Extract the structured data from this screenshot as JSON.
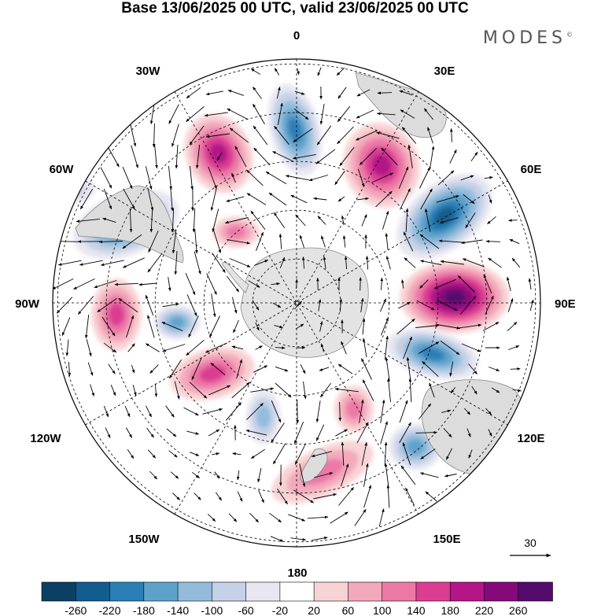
{
  "title": "Base 13/06/2025 00 UTC, valid 23/06/2025 00 UTC",
  "brand": "MODES",
  "brand_mark": "©",
  "longitude_labels": {
    "lon_0": "0",
    "lon_30e": "30E",
    "lon_60e": "60E",
    "lon_90e": "90E",
    "lon_120e": "120E",
    "lon_150e": "150E",
    "lon_180": "180",
    "lon_150w": "150W",
    "lon_120w": "120W",
    "lon_90w": "90W",
    "lon_60w": "60W",
    "lon_30w": "30W"
  },
  "vector_scale": {
    "label": "30"
  },
  "colorbar": {
    "ticks": [
      "-260",
      "-220",
      "-180",
      "-140",
      "-100",
      "-60",
      "-20",
      "20",
      "60",
      "100",
      "140",
      "180",
      "220",
      "260"
    ],
    "colors": [
      "#0b3f63",
      "#135d8e",
      "#2a7fb6",
      "#5ea2cc",
      "#93bcdc",
      "#c4d1e6",
      "#e7e6f1",
      "#ffffff",
      "#f8d3d6",
      "#f3a9bb",
      "#ec78a6",
      "#db3d92",
      "#b41587",
      "#86097a",
      "#550a6d"
    ]
  },
  "anomaly_cells": [
    {
      "kind": "negative",
      "magnitude": 220
    },
    {
      "kind": "positive",
      "magnitude": 240
    },
    {
      "kind": "negative",
      "magnitude": 180
    },
    {
      "kind": "positive",
      "magnitude": 160
    },
    {
      "kind": "negative",
      "magnitude": 160
    },
    {
      "kind": "positive",
      "magnitude": 160
    },
    {
      "kind": "negative",
      "magnitude": 160
    },
    {
      "kind": "positive",
      "magnitude": 140
    },
    {
      "kind": "negative",
      "magnitude": 120
    },
    {
      "kind": "positive",
      "magnitude": 120
    },
    {
      "kind": "positive",
      "magnitude": 100
    },
    {
      "kind": "negative",
      "magnitude": 120
    },
    {
      "kind": "positive",
      "magnitude": 80
    },
    {
      "kind": "negative",
      "magnitude": 80
    },
    {
      "kind": "positive",
      "magnitude": 80
    },
    {
      "kind": "negative",
      "magnitude": 60
    }
  ],
  "colors": {
    "land": "#d9d9d9",
    "graticule": "#000000",
    "arrow": "#000000"
  }
}
